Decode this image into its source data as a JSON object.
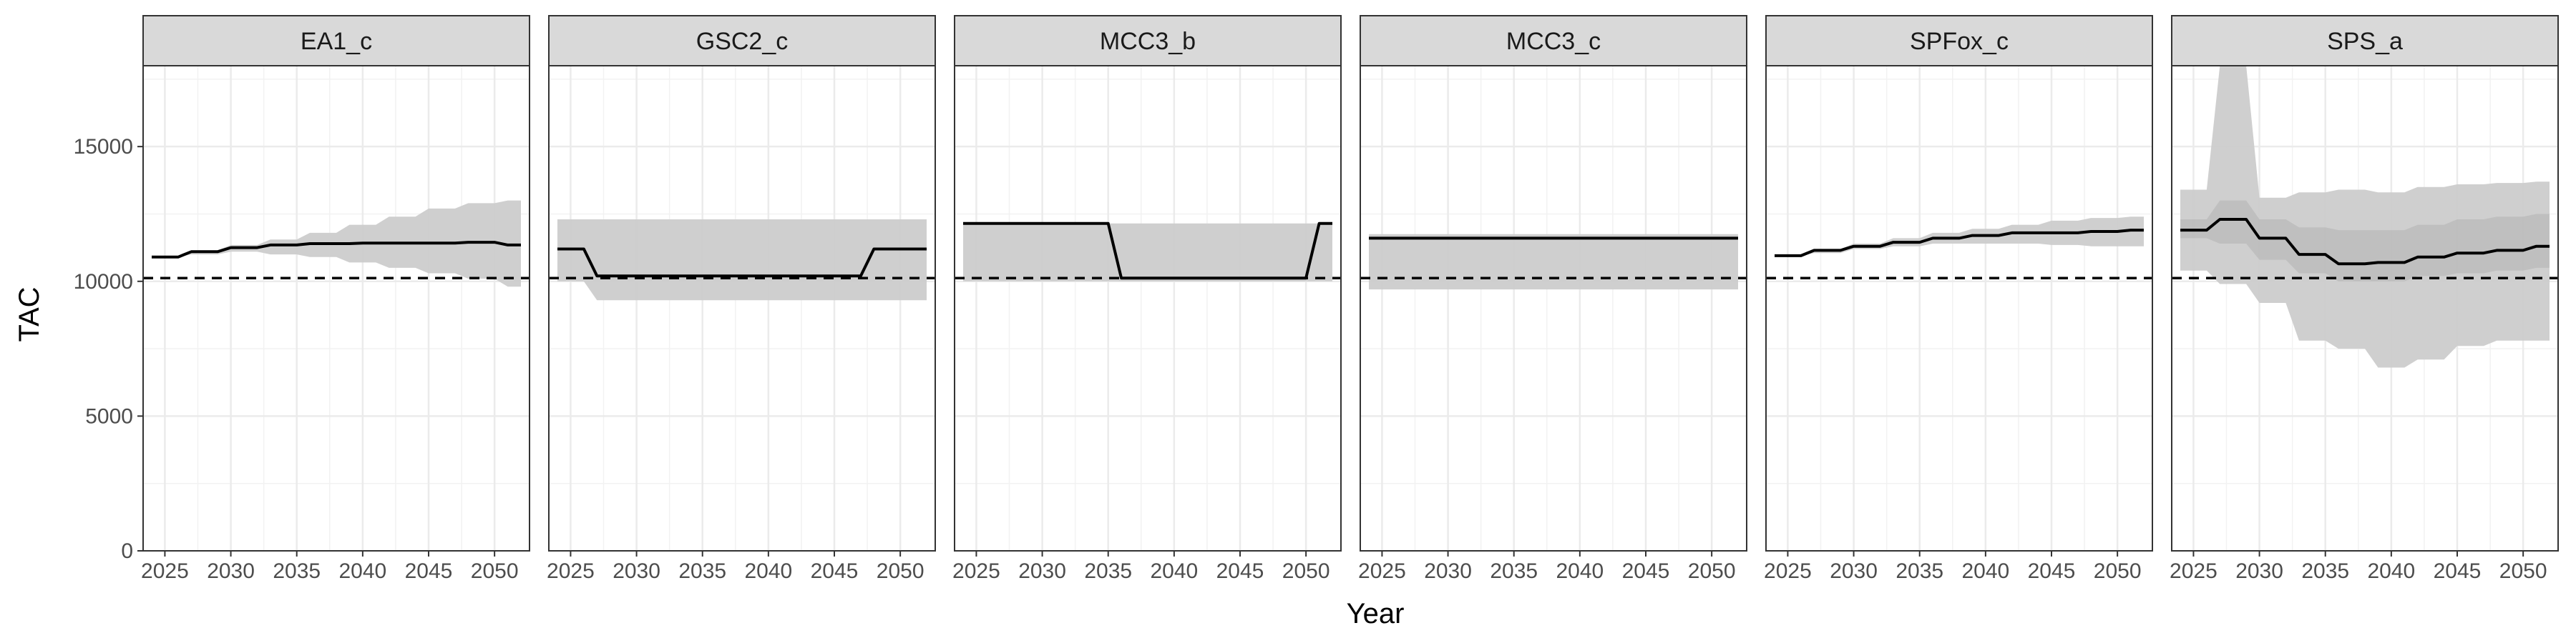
{
  "chart_data": {
    "type": "line",
    "xlabel": "Year",
    "ylabel": "TAC",
    "xlim": [
      2024,
      2052
    ],
    "ylim": [
      0,
      18000
    ],
    "x_ticks": [
      "2025",
      "2030",
      "2035",
      "2040",
      "2045",
      "2050"
    ],
    "y_ticks": [
      "0",
      "5000",
      "10000",
      "15000"
    ],
    "reference_line": {
      "y": 10120,
      "style": "dashed"
    },
    "grid": true,
    "colors": {
      "line": "#000000",
      "band": "#cccccc",
      "strip": "#d9d9d9",
      "grid": "#ebebeb"
    },
    "panels": [
      {
        "name": "EA1_c",
        "x": [
          2024,
          2025,
          2026,
          2027,
          2028,
          2029,
          2030,
          2031,
          2032,
          2033,
          2034,
          2035,
          2036,
          2037,
          2038,
          2039,
          2040,
          2041,
          2042,
          2043,
          2044,
          2045,
          2046,
          2047,
          2048,
          2049,
          2050,
          2051,
          2052
        ],
        "y": [
          10900,
          10900,
          10900,
          11100,
          11100,
          11100,
          11250,
          11250,
          11250,
          11350,
          11350,
          11350,
          11400,
          11400,
          11400,
          11400,
          11420,
          11420,
          11420,
          11420,
          11420,
          11420,
          11420,
          11420,
          11450,
          11450,
          11450,
          11350,
          11350
        ],
        "lower": [
          10900,
          10900,
          10900,
          11000,
          11000,
          11000,
          11100,
          11100,
          11100,
          11000,
          11000,
          11000,
          10900,
          10900,
          10900,
          10700,
          10700,
          10700,
          10500,
          10500,
          10500,
          10300,
          10300,
          10300,
          10100,
          10100,
          10100,
          9800,
          9800
        ],
        "upper": [
          10900,
          10900,
          10900,
          11150,
          11150,
          11150,
          11350,
          11350,
          11350,
          11550,
          11550,
          11550,
          11800,
          11800,
          11800,
          12100,
          12100,
          12100,
          12400,
          12400,
          12400,
          12700,
          12700,
          12700,
          12900,
          12900,
          12900,
          13000,
          13000
        ]
      },
      {
        "name": "GSC2_c",
        "x": [
          2024,
          2025,
          2026,
          2027,
          2028,
          2029,
          2030,
          2031,
          2032,
          2033,
          2034,
          2035,
          2036,
          2037,
          2038,
          2039,
          2040,
          2041,
          2042,
          2043,
          2044,
          2045,
          2046,
          2047,
          2048,
          2049,
          2050,
          2051,
          2052
        ],
        "y": [
          11200,
          11200,
          11200,
          10200,
          10200,
          10200,
          10200,
          10200,
          10200,
          10200,
          10200,
          10200,
          10200,
          10200,
          10200,
          10200,
          10200,
          10200,
          10200,
          10200,
          10200,
          10200,
          10200,
          10200,
          11200,
          11200,
          11200,
          11200,
          11200
        ],
        "lower": [
          10000,
          10000,
          10000,
          9300,
          9300,
          9300,
          9300,
          9300,
          9300,
          9300,
          9300,
          9300,
          9300,
          9300,
          9300,
          9300,
          9300,
          9300,
          9300,
          9300,
          9300,
          9300,
          9300,
          9300,
          9300,
          9300,
          9300,
          9300,
          9300
        ],
        "upper": [
          12300,
          12300,
          12300,
          12300,
          12300,
          12300,
          12300,
          12300,
          12300,
          12300,
          12300,
          12300,
          12300,
          12300,
          12300,
          12300,
          12300,
          12300,
          12300,
          12300,
          12300,
          12300,
          12300,
          12300,
          12300,
          12300,
          12300,
          12300,
          12300
        ]
      },
      {
        "name": "MCC3_b",
        "x": [
          2024,
          2025,
          2026,
          2027,
          2028,
          2029,
          2030,
          2031,
          2032,
          2033,
          2034,
          2035,
          2036,
          2037,
          2038,
          2039,
          2040,
          2041,
          2042,
          2043,
          2044,
          2045,
          2046,
          2047,
          2048,
          2049,
          2050,
          2051,
          2052
        ],
        "y": [
          12150,
          12150,
          12150,
          12150,
          12150,
          12150,
          12150,
          12150,
          12150,
          12150,
          12150,
          12150,
          10120,
          10120,
          10120,
          10120,
          10120,
          10120,
          10120,
          10120,
          10120,
          10120,
          10120,
          10120,
          10120,
          10120,
          10120,
          12150,
          12150
        ],
        "lower": [
          10000,
          10000,
          10000,
          10000,
          10000,
          10000,
          10000,
          10000,
          10000,
          10000,
          10000,
          10000,
          10000,
          10000,
          10000,
          10000,
          10000,
          10000,
          10000,
          10000,
          10000,
          10000,
          10000,
          10000,
          10000,
          10000,
          10000,
          10000,
          10000
        ],
        "upper": [
          12150,
          12150,
          12150,
          12150,
          12150,
          12150,
          12150,
          12150,
          12150,
          12150,
          12150,
          12150,
          12150,
          12150,
          12150,
          12150,
          12150,
          12150,
          12150,
          12150,
          12150,
          12150,
          12150,
          12150,
          12150,
          12150,
          12150,
          12150,
          12150
        ]
      },
      {
        "name": "MCC3_c",
        "x": [
          2024,
          2025,
          2026,
          2027,
          2028,
          2029,
          2030,
          2031,
          2032,
          2033,
          2034,
          2035,
          2036,
          2037,
          2038,
          2039,
          2040,
          2041,
          2042,
          2043,
          2044,
          2045,
          2046,
          2047,
          2048,
          2049,
          2050,
          2051,
          2052
        ],
        "y": [
          11600,
          11600,
          11600,
          11600,
          11600,
          11600,
          11600,
          11600,
          11600,
          11600,
          11600,
          11600,
          11600,
          11600,
          11600,
          11600,
          11600,
          11600,
          11600,
          11600,
          11600,
          11600,
          11600,
          11600,
          11600,
          11600,
          11600,
          11600,
          11600
        ],
        "lower": [
          9700,
          9700,
          9700,
          9700,
          9700,
          9700,
          9700,
          9700,
          9700,
          9700,
          9700,
          9700,
          9700,
          9700,
          9700,
          9700,
          9700,
          9700,
          9700,
          9700,
          9700,
          9700,
          9700,
          9700,
          9700,
          9700,
          9700,
          9700,
          9700
        ],
        "upper": [
          11750,
          11750,
          11750,
          11750,
          11750,
          11750,
          11750,
          11750,
          11750,
          11750,
          11750,
          11750,
          11750,
          11750,
          11750,
          11750,
          11750,
          11750,
          11750,
          11750,
          11750,
          11750,
          11750,
          11750,
          11750,
          11750,
          11750,
          11750,
          11750
        ]
      },
      {
        "name": "SPFox_c",
        "x": [
          2024,
          2025,
          2026,
          2027,
          2028,
          2029,
          2030,
          2031,
          2032,
          2033,
          2034,
          2035,
          2036,
          2037,
          2038,
          2039,
          2040,
          2041,
          2042,
          2043,
          2044,
          2045,
          2046,
          2047,
          2048,
          2049,
          2050,
          2051,
          2052
        ],
        "y": [
          10950,
          10950,
          10950,
          11150,
          11150,
          11150,
          11300,
          11300,
          11300,
          11450,
          11450,
          11450,
          11600,
          11600,
          11600,
          11700,
          11700,
          11700,
          11800,
          11800,
          11800,
          11800,
          11800,
          11800,
          11850,
          11850,
          11850,
          11900,
          11900
        ],
        "lower": [
          10950,
          10950,
          10950,
          11050,
          11050,
          11050,
          11200,
          11200,
          11200,
          11300,
          11300,
          11300,
          11400,
          11400,
          11400,
          11400,
          11400,
          11400,
          11400,
          11400,
          11400,
          11350,
          11350,
          11350,
          11300,
          11300,
          11300,
          11300,
          11300
        ],
        "upper": [
          10950,
          10950,
          10950,
          11200,
          11200,
          11200,
          11400,
          11400,
          11400,
          11600,
          11600,
          11600,
          11800,
          11800,
          11800,
          11950,
          11950,
          11950,
          12100,
          12100,
          12100,
          12250,
          12250,
          12250,
          12350,
          12350,
          12350,
          12400,
          12400
        ]
      },
      {
        "name": "SPS_a",
        "x": [
          2024,
          2025,
          2026,
          2027,
          2028,
          2029,
          2030,
          2031,
          2032,
          2033,
          2034,
          2035,
          2036,
          2037,
          2038,
          2039,
          2040,
          2041,
          2042,
          2043,
          2044,
          2045,
          2046,
          2047,
          2048,
          2049,
          2050,
          2051,
          2052
        ],
        "y": [
          11900,
          11900,
          11900,
          12300,
          12300,
          12300,
          11600,
          11600,
          11600,
          11000,
          11000,
          11000,
          10650,
          10650,
          10650,
          10700,
          10700,
          10700,
          10900,
          10900,
          10900,
          11050,
          11050,
          11050,
          11150,
          11150,
          11150,
          11300,
          11300
        ],
        "lower": [
          10400,
          10400,
          10400,
          9900,
          9900,
          9900,
          9200,
          9200,
          9200,
          7800,
          7800,
          7800,
          7500,
          7500,
          7500,
          6800,
          6800,
          6800,
          7100,
          7100,
          7100,
          7600,
          7600,
          7600,
          7800,
          7800,
          7800,
          7800,
          7800
        ],
        "upper": [
          13400,
          13400,
          13400,
          18000,
          18000,
          18000,
          13100,
          13100,
          13100,
          13300,
          13300,
          13300,
          13400,
          13400,
          13400,
          13300,
          13300,
          13300,
          13500,
          13500,
          13500,
          13600,
          13600,
          13600,
          13650,
          13650,
          13650,
          13700,
          13700
        ],
        "band_inner_lower": [
          11600,
          11600,
          11600,
          11400,
          11400,
          11400,
          10800,
          10800,
          10800,
          10300,
          10300,
          10300,
          10000,
          10000,
          10000,
          10000,
          10000,
          10000,
          10200,
          10200,
          10200,
          10300,
          10300,
          10300,
          10400,
          10400,
          10400,
          10500,
          10500
        ],
        "band_inner_upper": [
          12300,
          12300,
          12300,
          13000,
          13000,
          13000,
          12300,
          12300,
          12300,
          12000,
          12000,
          12000,
          11900,
          11900,
          11900,
          11900,
          11900,
          11900,
          12100,
          12100,
          12100,
          12300,
          12300,
          12300,
          12400,
          12400,
          12400,
          12500,
          12500
        ]
      }
    ]
  }
}
